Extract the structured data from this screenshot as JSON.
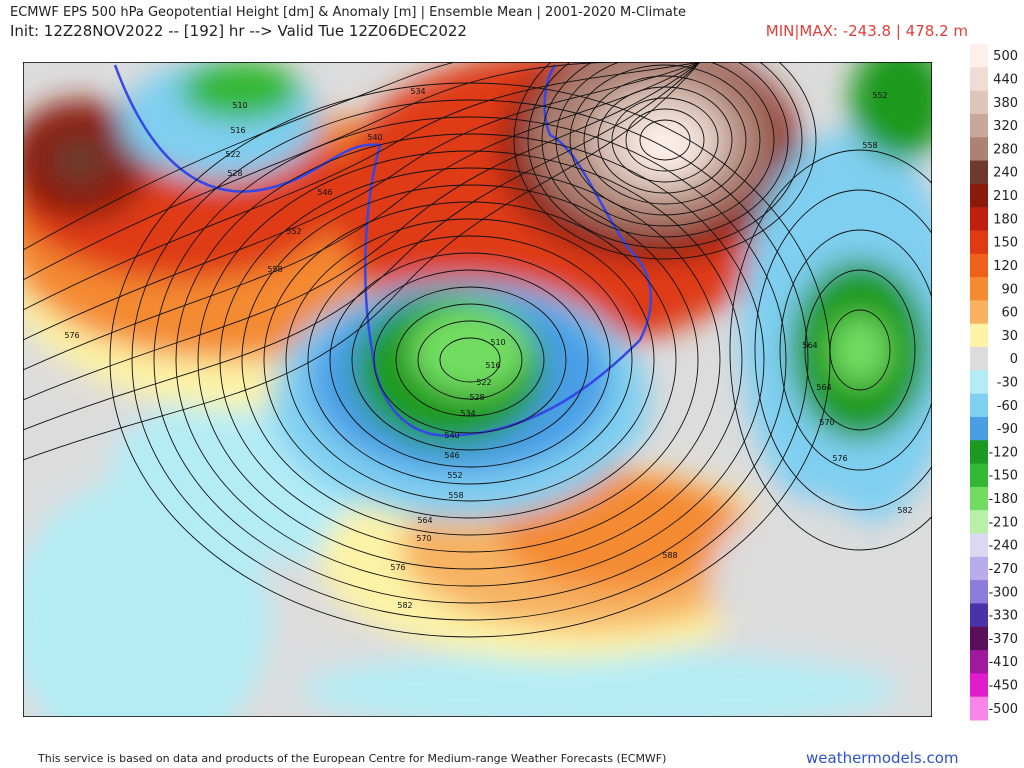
{
  "header": {
    "title": "ECMWF EPS 500 hPa Geopotential Height [dm] & Anomaly [m] | Ensemble Mean | 2001-2020 M-Climate",
    "subtitle": "Init: 12Z28NOV2022 -- [192] hr --> Valid Tue 12Z06DEC2022",
    "minmax": "MIN|MAX: -243.8 | 478.2 m"
  },
  "colorbar": {
    "labels": [
      500,
      440,
      380,
      320,
      280,
      240,
      210,
      180,
      150,
      120,
      90,
      60,
      30,
      0,
      -30,
      -60,
      -90,
      -120,
      -150,
      -180,
      -210,
      -240,
      -270,
      -300,
      -330,
      -370,
      -410,
      -450,
      -500
    ],
    "colors": [
      "#fdf0ea",
      "#efdcd3",
      "#dec6bc",
      "#c9a89c",
      "#ad8275",
      "#6e3a2f",
      "#8a1a0c",
      "#bf200f",
      "#df3a12",
      "#ef611a",
      "#f48a31",
      "#f7b262",
      "#fdf3a6",
      "#dcdcdc",
      "#b4ecf6",
      "#7fcff1",
      "#4a9ee6",
      "#1a9a1e",
      "#32b832",
      "#72dc62",
      "#b8f0a8",
      "#dcd8f4",
      "#b8acec",
      "#8c7cdc",
      "#4a32a8",
      "#5a0f5a",
      "#a0189c",
      "#e01ccc",
      "#f884e8"
    ]
  },
  "contour_labels": [
    "510",
    "516",
    "522",
    "528",
    "534",
    "540",
    "546",
    "552",
    "558",
    "576",
    "552",
    "558",
    "564",
    "570",
    "576",
    "582",
    "588",
    "510",
    "516",
    "522",
    "528",
    "534",
    "540",
    "546",
    "552",
    "558",
    "564",
    "570",
    "576",
    "582",
    "564"
  ],
  "footer": {
    "notice": "This service is based on data and products of the European Centre for Medium-range Weather Forecasts (ECMWF)",
    "site": "weathermodels.com"
  }
}
